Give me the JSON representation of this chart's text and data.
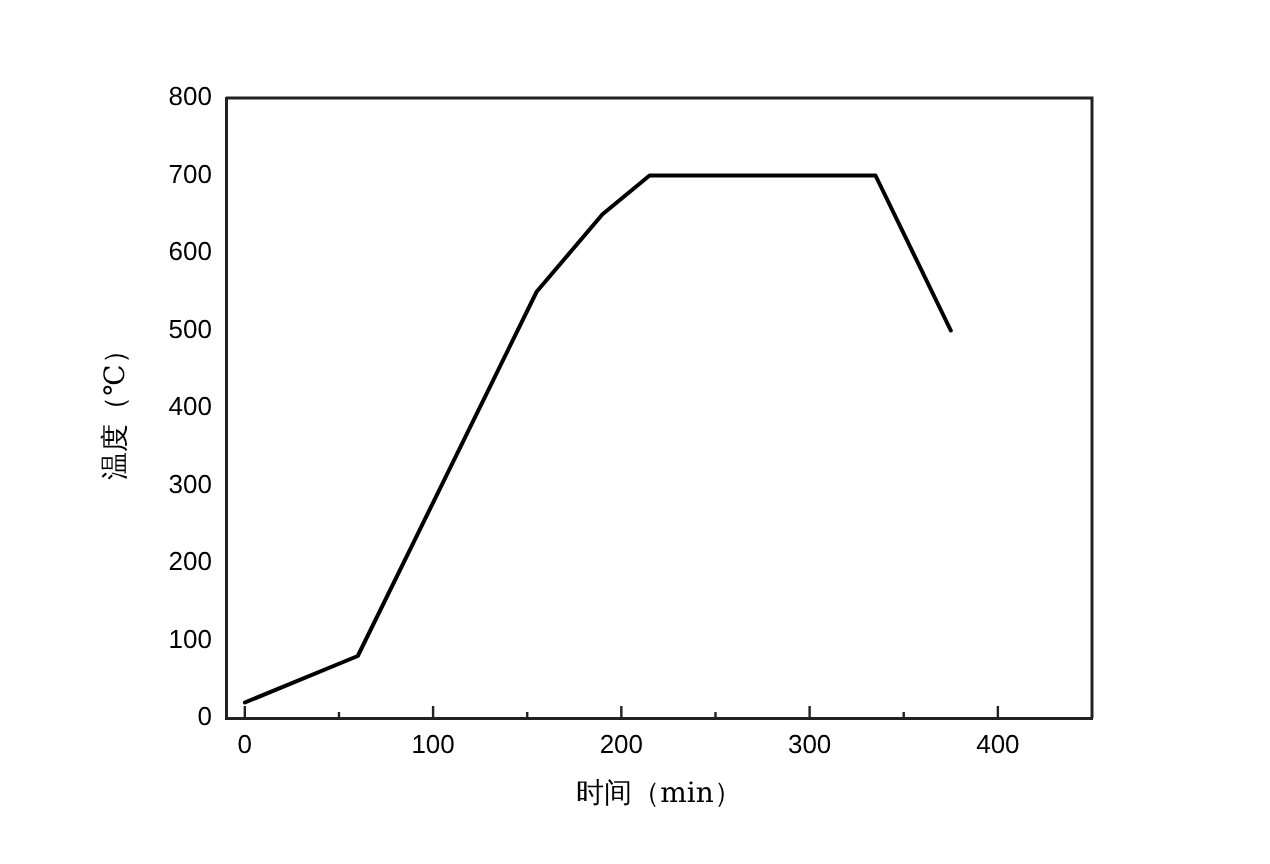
{
  "chart_data": {
    "type": "line",
    "xlabel": "时间（min）",
    "ylabel": "温度（℃）",
    "x": [
      0,
      60,
      155,
      190,
      215,
      335,
      375
    ],
    "series": [
      {
        "color": "#000000",
        "values": [
          20,
          80,
          550,
          650,
          700,
          700,
          500
        ]
      }
    ],
    "xlim": [
      -10,
      450
    ],
    "xticks": [
      0,
      {
        "value": 50,
        "label": null
      },
      100,
      {
        "value": 150,
        "label": null
      },
      200,
      {
        "value": 250,
        "label": null
      },
      300,
      {
        "value": 350,
        "label": null
      },
      400
    ],
    "ylim": [
      0,
      800
    ],
    "yticks": [
      0,
      100,
      200,
      300,
      400,
      500,
      600,
      700,
      800
    ]
  }
}
